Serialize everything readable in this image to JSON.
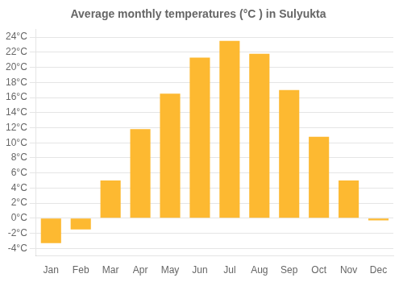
{
  "chart_data": {
    "type": "bar",
    "title": "Average monthly temperatures (°C ) in Sulyukta",
    "categories": [
      "Jan",
      "Feb",
      "Mar",
      "Apr",
      "May",
      "Jun",
      "Jul",
      "Aug",
      "Sep",
      "Oct",
      "Nov",
      "Dec"
    ],
    "values": [
      -3.3,
      -1.5,
      5.0,
      11.8,
      16.5,
      21.3,
      23.5,
      21.8,
      17.0,
      10.8,
      5.0,
      -0.3
    ],
    "color": "#FDB931",
    "ylim": [
      -5,
      25
    ],
    "yticks": [
      {
        "value": -4,
        "label": "-4°C"
      },
      {
        "value": -2,
        "label": "-2°C"
      },
      {
        "value": 0,
        "label": "0°C"
      },
      {
        "value": 2,
        "label": "2°C"
      },
      {
        "value": 4,
        "label": "4°C"
      },
      {
        "value": 6,
        "label": "6°C"
      },
      {
        "value": 8,
        "label": "8°C"
      },
      {
        "value": 10,
        "label": "10°C"
      },
      {
        "value": 12,
        "label": "12°C"
      },
      {
        "value": 14,
        "label": "14°C"
      },
      {
        "value": 16,
        "label": "16°C"
      },
      {
        "value": 18,
        "label": "18°C"
      },
      {
        "value": 20,
        "label": "20°C"
      },
      {
        "value": 22,
        "label": "22°C"
      },
      {
        "value": 24,
        "label": "24°C"
      }
    ],
    "grid": true
  }
}
